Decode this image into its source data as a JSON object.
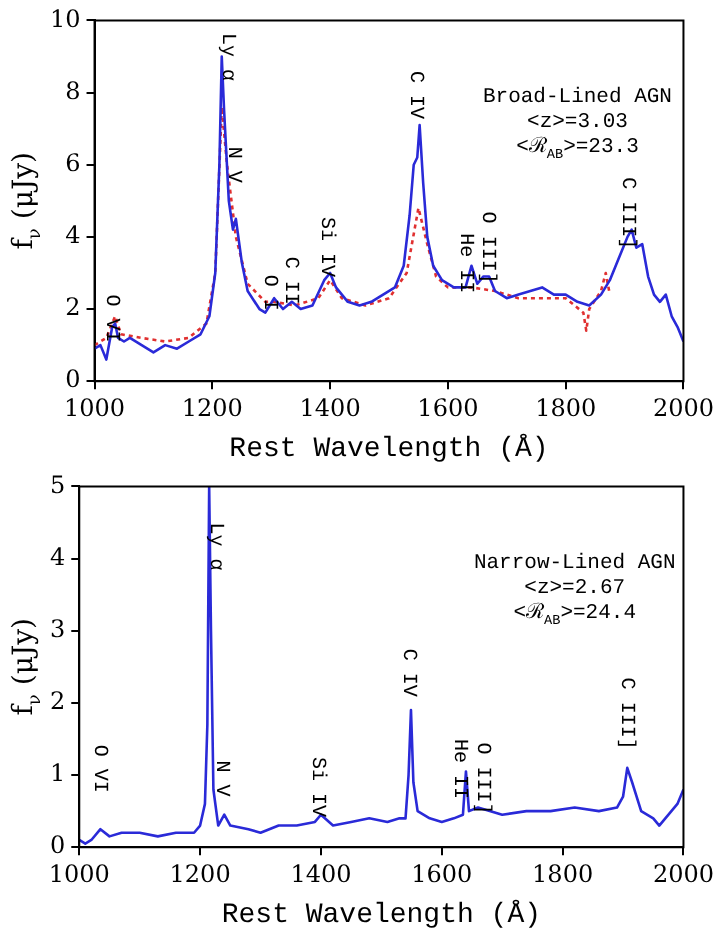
{
  "chart_data": [
    {
      "type": "line",
      "xlabel": "Rest Wavelength (Å)",
      "ylabel": "f$_{ν}$ (μJy)",
      "xlim": [
        1000,
        2000
      ],
      "xticks": [
        1000,
        1200,
        1400,
        1600,
        1800,
        2000
      ],
      "ylim": [
        0,
        10
      ],
      "yticks": [
        0,
        2,
        4,
        6,
        8,
        10
      ],
      "grid": false,
      "legend": false,
      "marker": "none",
      "series": [
        {
          "color": "#2a2ad8",
          "line_style": "solid",
          "x": [
            1000,
            1010,
            1020,
            1030,
            1035,
            1040,
            1050,
            1060,
            1080,
            1100,
            1120,
            1140,
            1160,
            1180,
            1195,
            1205,
            1212,
            1216,
            1220,
            1228,
            1235,
            1240,
            1250,
            1260,
            1280,
            1290,
            1305,
            1320,
            1335,
            1350,
            1370,
            1390,
            1400,
            1410,
            1430,
            1450,
            1470,
            1490,
            1510,
            1525,
            1535,
            1542,
            1548,
            1552,
            1558,
            1565,
            1575,
            1590,
            1610,
            1630,
            1640,
            1650,
            1660,
            1670,
            1680,
            1700,
            1720,
            1740,
            1760,
            1780,
            1800,
            1820,
            1840,
            1860,
            1875,
            1890,
            1905,
            1912,
            1920,
            1930,
            1940,
            1950,
            1960,
            1970,
            1980,
            1990,
            2000
          ],
          "values": [
            0.9,
            1.0,
            0.6,
            1.5,
            1.6,
            1.2,
            1.1,
            1.2,
            1.0,
            0.8,
            1.0,
            0.9,
            1.1,
            1.3,
            1.8,
            3.0,
            6.0,
            9.0,
            7.5,
            5.0,
            4.2,
            4.5,
            3.3,
            2.5,
            2.0,
            1.9,
            2.3,
            2.0,
            2.2,
            2.0,
            2.1,
            2.8,
            3.0,
            2.6,
            2.2,
            2.1,
            2.2,
            2.4,
            2.6,
            3.2,
            4.6,
            6.0,
            6.2,
            7.1,
            5.5,
            4.0,
            3.2,
            2.8,
            2.6,
            2.6,
            3.2,
            2.7,
            2.9,
            2.9,
            2.5,
            2.3,
            2.4,
            2.5,
            2.6,
            2.4,
            2.4,
            2.2,
            2.1,
            2.4,
            2.8,
            3.4,
            4.0,
            4.2,
            3.7,
            3.8,
            2.9,
            2.4,
            2.2,
            2.4,
            1.8,
            1.5,
            1.1
          ]
        },
        {
          "color": "#e03030",
          "line_style": "dotted",
          "x": [
            1000,
            1020,
            1035,
            1045,
            1080,
            1120,
            1160,
            1190,
            1205,
            1216,
            1225,
            1240,
            1260,
            1290,
            1305,
            1340,
            1380,
            1400,
            1420,
            1460,
            1500,
            1530,
            1550,
            1565,
            1580,
            1600,
            1640,
            1680,
            1720,
            1760,
            1800,
            1830,
            1835,
            1840,
            1860,
            1868,
            1875
          ],
          "values": [
            1.0,
            1.2,
            1.8,
            1.3,
            1.2,
            1.1,
            1.2,
            1.6,
            3.0,
            7.6,
            6.0,
            4.0,
            2.7,
            2.2,
            2.2,
            2.1,
            2.3,
            2.8,
            2.3,
            2.1,
            2.3,
            3.0,
            4.8,
            3.8,
            2.9,
            2.6,
            2.6,
            2.5,
            2.3,
            2.3,
            2.3,
            1.9,
            1.4,
            2.0,
            2.5,
            3.0,
            2.4
          ]
        }
      ],
      "annotations": [
        "Broad-Lined AGN",
        "<z>=3.03",
        "<ℛ$_{AB}$>=23.3",
        "O VI",
        "Ly α",
        "N V",
        "O I",
        "C II",
        "Si IV",
        "C IV",
        "He II",
        "O III]",
        "C III]"
      ]
    },
    {
      "type": "line",
      "xlabel": "Rest Wavelength (Å)",
      "ylabel": "f$_{ν}$ (μJy)",
      "xlim": [
        1000,
        2000
      ],
      "xticks": [
        1000,
        1200,
        1400,
        1600,
        1800,
        2000
      ],
      "ylim": [
        0,
        5
      ],
      "yticks": [
        0,
        1,
        2,
        3,
        4,
        5
      ],
      "grid": false,
      "legend": false,
      "marker": "none",
      "series": [
        {
          "color": "#2a2ad8",
          "line_style": "solid",
          "x": [
            1000,
            1010,
            1020,
            1035,
            1050,
            1070,
            1100,
            1130,
            1160,
            1190,
            1200,
            1208,
            1212,
            1215,
            1218,
            1222,
            1230,
            1240,
            1250,
            1280,
            1300,
            1330,
            1360,
            1390,
            1400,
            1420,
            1450,
            1480,
            1510,
            1530,
            1540,
            1545,
            1549,
            1553,
            1560,
            1580,
            1600,
            1620,
            1635,
            1640,
            1645,
            1660,
            1700,
            1740,
            1780,
            1820,
            1860,
            1890,
            1900,
            1907,
            1915,
            1930,
            1950,
            1960,
            1980,
            1990,
            2000
          ],
          "values": [
            0.1,
            0.05,
            0.1,
            0.25,
            0.15,
            0.2,
            0.2,
            0.15,
            0.2,
            0.2,
            0.3,
            0.6,
            1.7,
            5.0,
            3.0,
            0.8,
            0.3,
            0.45,
            0.3,
            0.25,
            0.2,
            0.3,
            0.3,
            0.35,
            0.45,
            0.3,
            0.35,
            0.4,
            0.35,
            0.4,
            0.4,
            1.0,
            1.9,
            0.9,
            0.5,
            0.4,
            0.35,
            0.4,
            0.45,
            1.05,
            0.5,
            0.55,
            0.45,
            0.5,
            0.5,
            0.55,
            0.5,
            0.55,
            0.7,
            1.1,
            0.9,
            0.5,
            0.4,
            0.3,
            0.5,
            0.6,
            0.8
          ]
        }
      ],
      "annotations": [
        "Narrow-Lined AGN",
        "<z>=2.67",
        "<ℛ$_{AB}$>=24.4",
        "O VI",
        "Ly α",
        "N V",
        "Si IV",
        "C IV",
        "He II",
        "O III]",
        "C III]"
      ]
    }
  ]
}
